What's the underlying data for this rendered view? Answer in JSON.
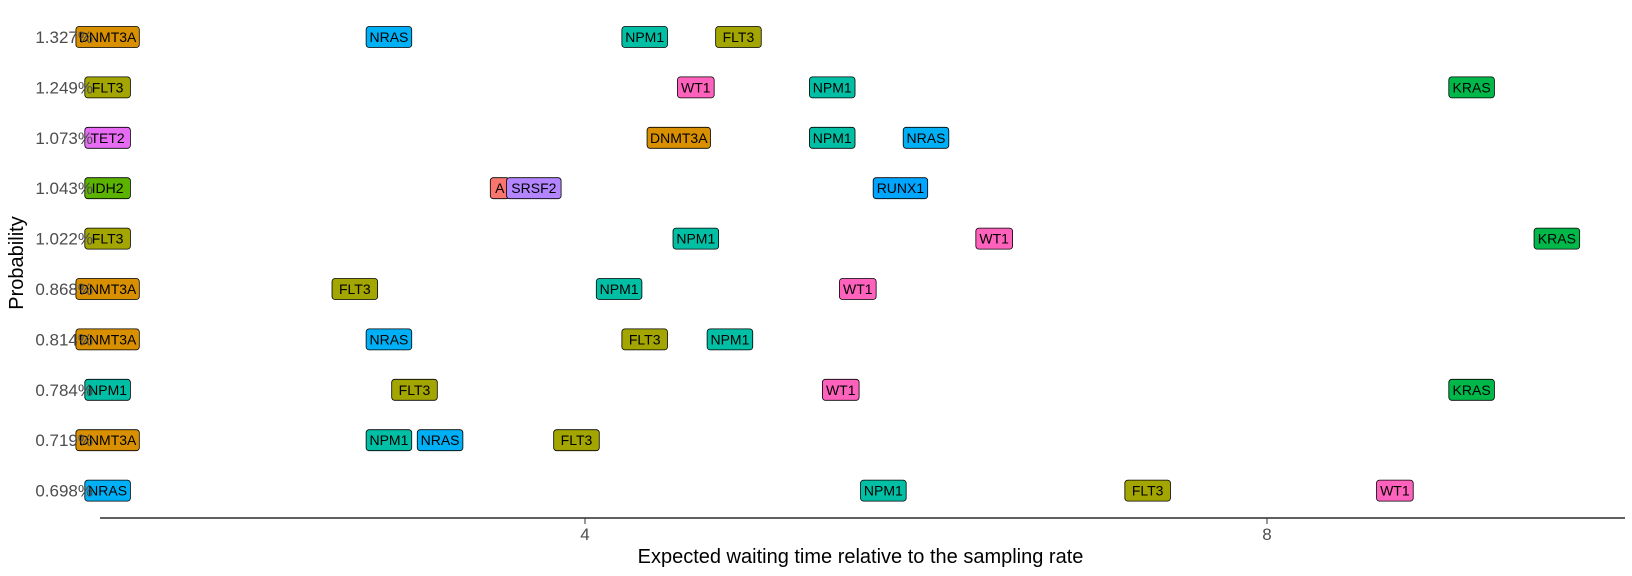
{
  "chart_data": {
    "type": "scatter",
    "title": "",
    "xlabel": "Expected waiting time relative to the sampling rate",
    "ylabel": "Probability",
    "xlim": [
      0.8,
      9.75
    ],
    "x_ticks": [
      4,
      8
    ],
    "x_tick_labels": [
      "4",
      "8"
    ],
    "y_categories": [
      "1.327%",
      "1.249%",
      "1.073%",
      "1.043%",
      "1.022%",
      "0.868%",
      "0.814%",
      "0.784%",
      "0.719%",
      "0.698%"
    ],
    "grid": false,
    "legend": "none",
    "gene_colors": {
      "DNMT3A": "#D89000",
      "NRAS": "#00B0F6",
      "NPM1": "#00BFA5",
      "FLT3": "#A3A500",
      "WT1": "#FF62BC",
      "KRAS": "#00B84A",
      "TET2": "#E76BF3",
      "IDH2": "#5BB300",
      "A": "#F8766D",
      "SRSF2": "#B385FF",
      "RUNX1": "#00A5FF"
    },
    "points": [
      {
        "y": "1.327%",
        "x": 1.2,
        "gene": "DNMT3A"
      },
      {
        "y": "1.327%",
        "x": 2.85,
        "gene": "NRAS"
      },
      {
        "y": "1.327%",
        "x": 4.35,
        "gene": "NPM1"
      },
      {
        "y": "1.327%",
        "x": 4.9,
        "gene": "FLT3"
      },
      {
        "y": "1.249%",
        "x": 1.2,
        "gene": "FLT3"
      },
      {
        "y": "1.249%",
        "x": 4.65,
        "gene": "WT1"
      },
      {
        "y": "1.249%",
        "x": 5.45,
        "gene": "NPM1"
      },
      {
        "y": "1.249%",
        "x": 9.2,
        "gene": "KRAS"
      },
      {
        "y": "1.073%",
        "x": 1.2,
        "gene": "TET2"
      },
      {
        "y": "1.073%",
        "x": 4.55,
        "gene": "DNMT3A"
      },
      {
        "y": "1.073%",
        "x": 5.45,
        "gene": "NPM1"
      },
      {
        "y": "1.073%",
        "x": 6.0,
        "gene": "NRAS"
      },
      {
        "y": "1.043%",
        "x": 1.2,
        "gene": "IDH2"
      },
      {
        "y": "1.043%",
        "x": 3.5,
        "gene": "A"
      },
      {
        "y": "1.043%",
        "x": 3.7,
        "gene": "SRSF2"
      },
      {
        "y": "1.043%",
        "x": 5.85,
        "gene": "RUNX1"
      },
      {
        "y": "1.022%",
        "x": 1.2,
        "gene": "FLT3"
      },
      {
        "y": "1.022%",
        "x": 4.65,
        "gene": "NPM1"
      },
      {
        "y": "1.022%",
        "x": 6.4,
        "gene": "WT1"
      },
      {
        "y": "1.022%",
        "x": 9.7,
        "gene": "KRAS"
      },
      {
        "y": "0.868%",
        "x": 1.2,
        "gene": "DNMT3A"
      },
      {
        "y": "0.868%",
        "x": 2.65,
        "gene": "FLT3"
      },
      {
        "y": "0.868%",
        "x": 4.2,
        "gene": "NPM1"
      },
      {
        "y": "0.868%",
        "x": 5.6,
        "gene": "WT1"
      },
      {
        "y": "0.814%",
        "x": 1.2,
        "gene": "DNMT3A"
      },
      {
        "y": "0.814%",
        "x": 2.85,
        "gene": "NRAS"
      },
      {
        "y": "0.814%",
        "x": 4.35,
        "gene": "FLT3"
      },
      {
        "y": "0.814%",
        "x": 4.85,
        "gene": "NPM1"
      },
      {
        "y": "0.784%",
        "x": 1.2,
        "gene": "NPM1"
      },
      {
        "y": "0.784%",
        "x": 3.0,
        "gene": "FLT3"
      },
      {
        "y": "0.784%",
        "x": 5.5,
        "gene": "WT1"
      },
      {
        "y": "0.784%",
        "x": 9.2,
        "gene": "KRAS"
      },
      {
        "y": "0.719%",
        "x": 1.2,
        "gene": "DNMT3A"
      },
      {
        "y": "0.719%",
        "x": 2.85,
        "gene": "NPM1"
      },
      {
        "y": "0.719%",
        "x": 3.15,
        "gene": "NRAS"
      },
      {
        "y": "0.719%",
        "x": 3.95,
        "gene": "FLT3"
      },
      {
        "y": "0.698%",
        "x": 1.2,
        "gene": "NRAS"
      },
      {
        "y": "0.698%",
        "x": 5.75,
        "gene": "NPM1"
      },
      {
        "y": "0.698%",
        "x": 7.3,
        "gene": "FLT3"
      },
      {
        "y": "0.698%",
        "x": 8.75,
        "gene": "WT1"
      }
    ]
  }
}
